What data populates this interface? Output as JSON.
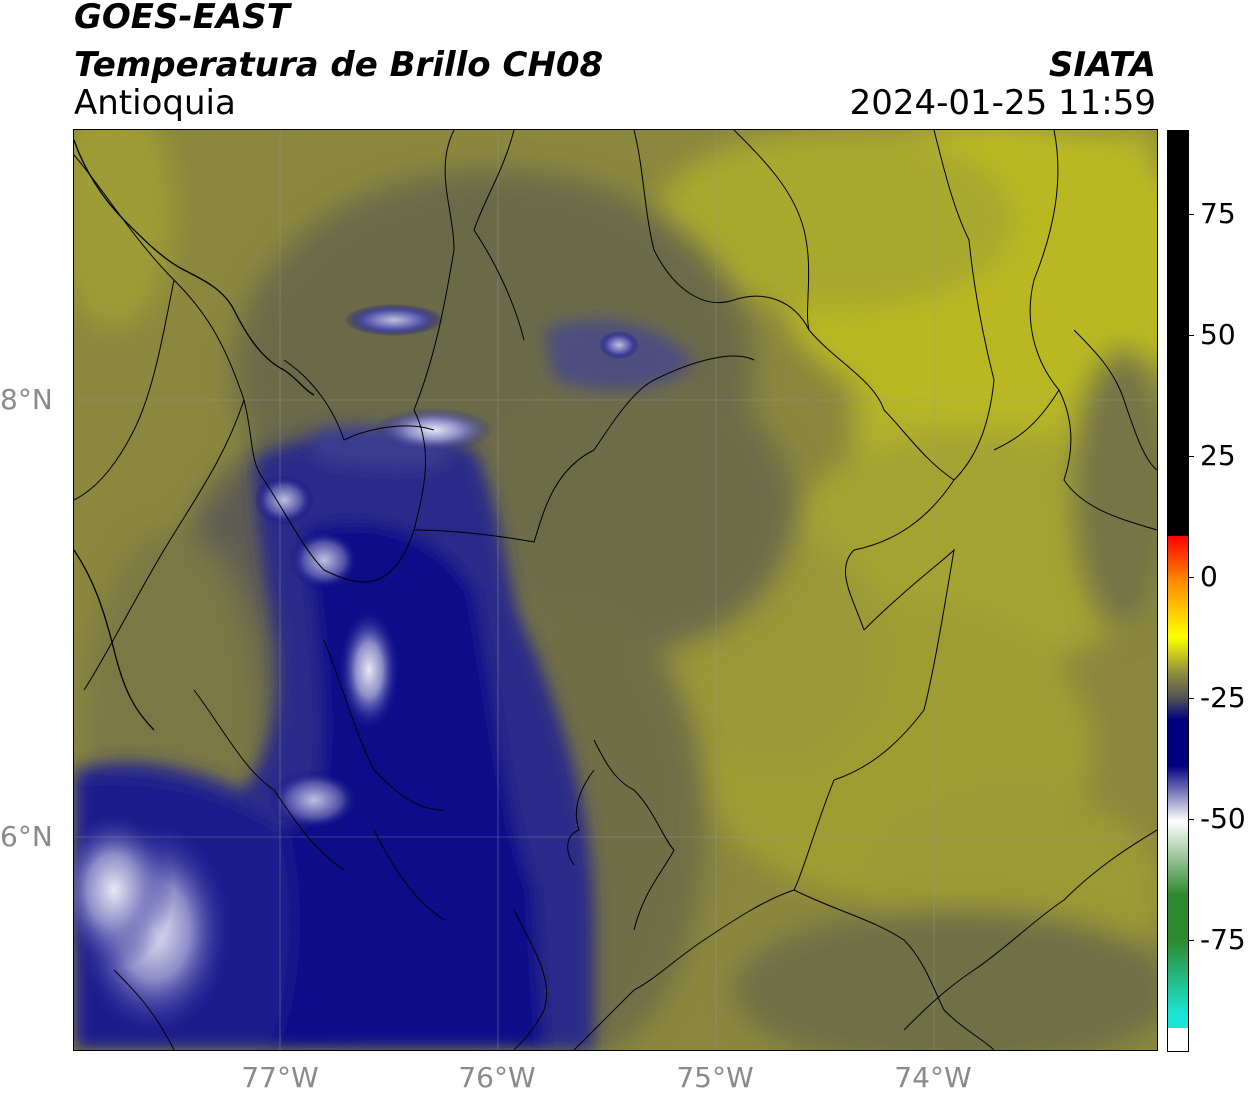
{
  "header": {
    "line1": "GOES-EAST",
    "line2": "Temperatura de Brillo CH08",
    "line3": "Antioquia",
    "organization": "SIATA",
    "timestamp": "2024-01-25 11:59"
  },
  "axes": {
    "lon_labels": [
      "77°W",
      "76°W",
      "75°W",
      "74°W"
    ],
    "lat_labels": [
      "8°N",
      "6°N"
    ]
  },
  "colorbar": {
    "ticks": [
      "75",
      "50",
      "25",
      "0",
      "-25",
      "-50",
      "-75"
    ],
    "tick_values": [
      75,
      50,
      25,
      0,
      -25,
      -50,
      -75
    ],
    "range": [
      -95,
      92
    ],
    "colors": {
      "black": "#000000",
      "red": "#ff0000",
      "orange": "#ff8c00",
      "yellow": "#ffff00",
      "olive": "#8d8a3e",
      "gray": "#555555",
      "navy": "#000080",
      "white": "#ffffff",
      "green": "#2f8a2f",
      "cyan": "#19e6d6"
    }
  }
}
